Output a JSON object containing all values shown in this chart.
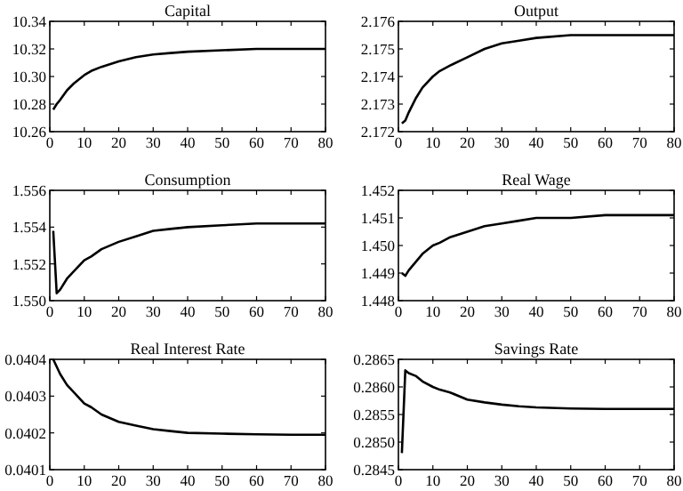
{
  "chart_data": [
    {
      "type": "line",
      "title": "Capital",
      "x": [
        1,
        2,
        3,
        5,
        7,
        10,
        12,
        15,
        20,
        25,
        30,
        35,
        40,
        50,
        60,
        70,
        80
      ],
      "series": [
        {
          "color": "#000000",
          "values": [
            10.276,
            10.28,
            10.283,
            10.29,
            10.295,
            10.301,
            10.304,
            10.307,
            10.311,
            10.314,
            10.316,
            10.317,
            10.318,
            10.319,
            10.32,
            10.32,
            10.32
          ]
        }
      ],
      "xlim": [
        0,
        80
      ],
      "xticks": [
        0,
        10,
        20,
        30,
        40,
        50,
        60,
        70,
        80
      ],
      "ylim": [
        10.26,
        10.34
      ],
      "yticks": [
        10.26,
        10.28,
        {
          "value": 10.3,
          "label": "10.30"
        },
        10.32,
        10.34
      ],
      "grid": false
    },
    {
      "type": "line",
      "title": "Output",
      "x": [
        1,
        2,
        3,
        5,
        7,
        10,
        12,
        15,
        20,
        25,
        30,
        35,
        40,
        50,
        60,
        70,
        80
      ],
      "series": [
        {
          "color": "#000000",
          "values": [
            2.1723,
            2.1724,
            2.1727,
            2.1732,
            2.1736,
            2.174,
            2.1742,
            2.1744,
            2.1747,
            2.175,
            2.1752,
            2.1753,
            2.1754,
            2.1755,
            2.1755,
            2.1755,
            2.1755
          ]
        }
      ],
      "xlim": [
        0,
        80
      ],
      "xticks": [
        0,
        10,
        20,
        30,
        40,
        50,
        60,
        70,
        80
      ],
      "ylim": [
        2.172,
        2.176
      ],
      "yticks": [
        2.172,
        2.173,
        2.174,
        2.175,
        2.176
      ],
      "grid": false
    },
    {
      "type": "line",
      "title": "Consumption",
      "x": [
        1,
        2,
        3,
        5,
        7,
        10,
        12,
        15,
        20,
        25,
        30,
        35,
        40,
        50,
        60,
        70,
        80
      ],
      "series": [
        {
          "color": "#000000",
          "values": [
            1.5538,
            1.5504,
            1.5506,
            1.5512,
            1.5516,
            1.5522,
            1.5524,
            1.5528,
            1.5532,
            1.5535,
            1.5538,
            1.5539,
            1.554,
            1.5541,
            1.5542,
            1.5542,
            1.5542
          ]
        }
      ],
      "xlim": [
        0,
        80
      ],
      "xticks": [
        0,
        10,
        20,
        30,
        40,
        50,
        60,
        70,
        80
      ],
      "ylim": [
        1.55,
        1.556
      ],
      "yticks": [
        {
          "value": 1.55,
          "label": "1.550"
        },
        1.552,
        1.554,
        1.556
      ],
      "grid": false
    },
    {
      "type": "line",
      "title": "Real Wage",
      "x": [
        1,
        2,
        3,
        5,
        7,
        10,
        12,
        15,
        20,
        25,
        30,
        35,
        40,
        50,
        60,
        70,
        80
      ],
      "series": [
        {
          "color": "#000000",
          "values": [
            1.449,
            1.4489,
            1.4491,
            1.4494,
            1.4497,
            1.45,
            1.4501,
            1.4503,
            1.4505,
            1.4507,
            1.4508,
            1.4509,
            1.451,
            1.451,
            1.4511,
            1.4511,
            1.4511
          ]
        }
      ],
      "xlim": [
        0,
        80
      ],
      "xticks": [
        0,
        10,
        20,
        30,
        40,
        50,
        60,
        70,
        80
      ],
      "ylim": [
        1.448,
        1.452
      ],
      "yticks": [
        1.448,
        1.449,
        {
          "value": 1.45,
          "label": "1.450"
        },
        1.451,
        1.452
      ],
      "grid": false
    },
    {
      "type": "line",
      "title": "Real Interest Rate",
      "x": [
        1,
        3,
        5,
        7,
        10,
        12,
        15,
        20,
        25,
        30,
        35,
        40,
        50,
        60,
        70,
        80
      ],
      "series": [
        {
          "color": "#000000",
          "values": [
            0.0404,
            0.04036,
            0.04033,
            0.04031,
            0.04028,
            0.04027,
            0.04025,
            0.04023,
            0.04022,
            0.04021,
            0.040205,
            0.0402,
            0.040198,
            0.040196,
            0.040195,
            0.040195
          ]
        }
      ],
      "xlim": [
        0,
        80
      ],
      "xticks": [
        0,
        10,
        20,
        30,
        40,
        50,
        60,
        70,
        80
      ],
      "ylim": [
        0.0401,
        0.0404
      ],
      "yticks": [
        0.0401,
        0.0402,
        0.0403,
        0.0404
      ],
      "grid": false
    },
    {
      "type": "line",
      "title": "Savings Rate",
      "x": [
        1,
        2,
        3,
        5,
        7,
        10,
        12,
        15,
        20,
        25,
        30,
        35,
        40,
        50,
        60,
        70,
        80
      ],
      "series": [
        {
          "color": "#000000",
          "values": [
            0.2848,
            0.2863,
            0.28625,
            0.2862,
            0.2861,
            0.286,
            0.28595,
            0.2859,
            0.28577,
            0.28572,
            0.28568,
            0.28565,
            0.28563,
            0.28561,
            0.2856,
            0.2856,
            0.2856
          ]
        }
      ],
      "xlim": [
        0,
        80
      ],
      "xticks": [
        0,
        10,
        20,
        30,
        40,
        50,
        60,
        70,
        80
      ],
      "ylim": [
        0.2845,
        0.2865
      ],
      "yticks": [
        0.2845,
        {
          "value": 0.285,
          "label": "0.2850"
        },
        0.2855,
        {
          "value": 0.286,
          "label": "0.2860"
        },
        0.2865
      ],
      "grid": false
    }
  ]
}
